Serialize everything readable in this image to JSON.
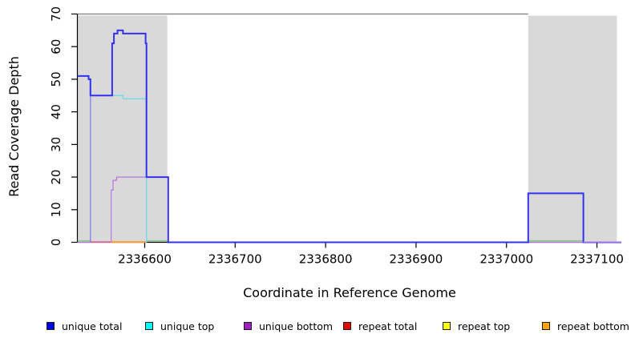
{
  "chart_data": {
    "type": "line",
    "title": "",
    "xlabel": "Coordinate in Reference Genome",
    "ylabel": "Read Coverage Depth",
    "xlim": [
      2336526,
      2337127
    ],
    "ylim": [
      0,
      70
    ],
    "x_ticks": [
      2336600,
      2336700,
      2336800,
      2336900,
      2337000,
      2337100
    ],
    "y_ticks": [
      0,
      10,
      20,
      30,
      40,
      50,
      60,
      70
    ],
    "grid": false,
    "legend_position": "bottom",
    "colors": {
      "shading": "#d9d9d9",
      "top_rule": "#8c8c8c",
      "axis": "#000000"
    },
    "background_shading": [
      {
        "name": "flanking-region-left",
        "x0": 2336526,
        "x1": 2336625
      },
      {
        "name": "flanking-region-right",
        "x0": 2337024,
        "x1": 2337122
      }
    ],
    "top_rule": {
      "y": 70,
      "x0": 2336526,
      "x1": 2337024
    },
    "series": [
      {
        "name": "unique bottom",
        "color": "#b678dc",
        "width": 1.2,
        "points": [
          [
            2336526,
            0
          ],
          [
            2336563,
            0
          ],
          [
            2336563,
            16
          ],
          [
            2336565,
            16
          ],
          [
            2336565,
            19
          ],
          [
            2336569,
            19
          ],
          [
            2336569,
            20
          ],
          [
            2336626,
            20
          ],
          [
            2336626,
            0
          ],
          [
            2337127,
            0
          ]
        ]
      },
      {
        "name": "baseline green segment 1",
        "color": "#84ce88",
        "width": 1.2,
        "points": [
          [
            2336526,
            0.5
          ],
          [
            2336540,
            0.5
          ]
        ]
      },
      {
        "name": "baseline green segment 2",
        "color": "#84ce88",
        "width": 1.2,
        "points": [
          [
            2336602,
            0.5
          ],
          [
            2336625,
            0.5
          ]
        ]
      },
      {
        "name": "baseline green segment 3",
        "color": "#84ce88",
        "width": 1.2,
        "points": [
          [
            2337024,
            0.5
          ],
          [
            2337085,
            0.5
          ]
        ]
      },
      {
        "name": "repeat total",
        "color": "#e05a80",
        "width": 1.4,
        "points": [
          [
            2336540,
            0.1
          ],
          [
            2336563,
            0.1
          ]
        ]
      },
      {
        "name": "repeat bottom",
        "color": "#ff9d2e",
        "width": 2,
        "points": [
          [
            2336563,
            0.1
          ],
          [
            2336602,
            0.1
          ]
        ]
      },
      {
        "name": "unique top",
        "color": "#79d8e8",
        "width": 1.5,
        "points": [
          [
            2336540,
            45
          ],
          [
            2336576,
            45
          ],
          [
            2336576,
            44
          ],
          [
            2336602,
            44
          ],
          [
            2336602,
            0
          ]
        ]
      },
      {
        "name": "unique bottom edge",
        "color": "#7b7ce6",
        "width": 1.2,
        "points": [
          [
            2336540,
            45
          ],
          [
            2336540,
            0
          ]
        ]
      },
      {
        "name": "unique total",
        "color": "#3232f0",
        "width": 2,
        "points": [
          [
            2336526,
            51
          ],
          [
            2336538,
            51
          ],
          [
            2336538,
            50
          ],
          [
            2336540,
            50
          ],
          [
            2336540,
            45
          ],
          [
            2336564,
            45
          ],
          [
            2336564,
            61
          ],
          [
            2336566,
            61
          ],
          [
            2336566,
            64
          ],
          [
            2336570,
            64
          ],
          [
            2336570,
            65
          ],
          [
            2336576,
            65
          ],
          [
            2336576,
            64
          ],
          [
            2336601,
            64
          ],
          [
            2336601,
            61
          ],
          [
            2336602,
            61
          ],
          [
            2336602,
            20
          ],
          [
            2336626,
            20
          ],
          [
            2336626,
            0
          ],
          [
            2337024,
            0
          ],
          [
            2337024,
            15
          ],
          [
            2337085,
            15
          ],
          [
            2337085,
            0
          ],
          [
            2337127,
            0
          ]
        ]
      },
      {
        "name": "zero line plum overlay",
        "color": "#bd8ce0",
        "width": 1.4,
        "points": [
          [
            2337085,
            0.1
          ],
          [
            2337127,
            0.1
          ]
        ]
      }
    ],
    "legend": {
      "items": [
        {
          "label": "unique total",
          "color": "#0000ee"
        },
        {
          "label": "unique top",
          "color": "#00ffff"
        },
        {
          "label": "unique bottom",
          "color": "#a020c0"
        },
        {
          "label": "repeat total",
          "color": "#ee0000"
        },
        {
          "label": "repeat top",
          "color": "#ffff00"
        },
        {
          "label": "repeat bottom",
          "color": "#ffa500"
        }
      ]
    }
  }
}
